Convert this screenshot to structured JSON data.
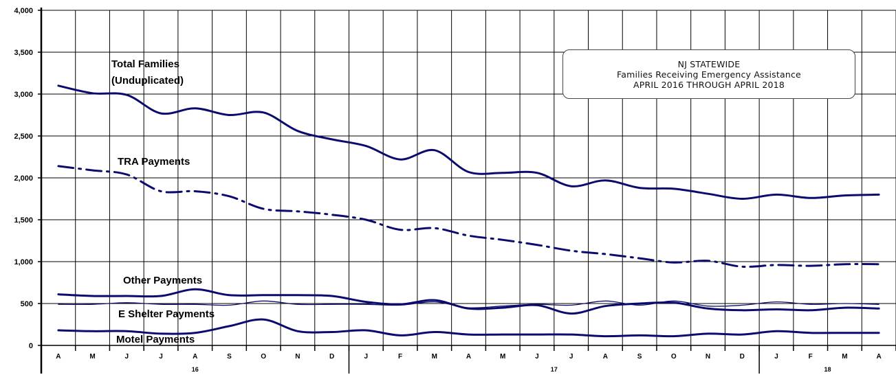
{
  "chart_data": {
    "type": "line",
    "title_lines": [
      "NJ STATEWIDE",
      "Families Receiving Emergency Assistance",
      "APRIL 2016 THROUGH APRIL 2018"
    ],
    "ylim": [
      0,
      4000
    ],
    "y_ticks": [
      "0",
      "500",
      "1,000",
      "1,500",
      "2,000",
      "2,500",
      "3,000",
      "3,500",
      "4,000"
    ],
    "y_tick_values": [
      0,
      500,
      1000,
      1500,
      2000,
      2500,
      3000,
      3500,
      4000
    ],
    "categories": [
      "A",
      "M",
      "J",
      "J",
      "A",
      "S",
      "O",
      "N",
      "D",
      "J",
      "F",
      "M",
      "A",
      "M",
      "J",
      "J",
      "A",
      "S",
      "O",
      "N",
      "D",
      "J",
      "F",
      "M",
      "A"
    ],
    "year_groups": [
      {
        "label": "16",
        "start": 0,
        "end": 8
      },
      {
        "label": "17",
        "start": 9,
        "end": 20
      },
      {
        "label": "18",
        "start": 21,
        "end": 24
      }
    ],
    "grid": true,
    "series": [
      {
        "name": "Total Families (Unduplicated)",
        "name_lines": [
          "Total Families",
          "(Unduplicated)"
        ],
        "style": "solid",
        "width": 3,
        "values": [
          3100,
          3010,
          2990,
          2770,
          2830,
          2750,
          2780,
          2560,
          2460,
          2380,
          2220,
          2330,
          2070,
          2060,
          2060,
          1900,
          1970,
          1880,
          1870,
          1810,
          1750,
          1800,
          1760,
          1790,
          1800
        ]
      },
      {
        "name": "TRA Payments",
        "name_lines": [
          "TRA Payments"
        ],
        "style": "dashdot",
        "width": 3,
        "values": [
          2140,
          2090,
          2040,
          1840,
          1840,
          1780,
          1630,
          1600,
          1560,
          1500,
          1380,
          1400,
          1310,
          1260,
          1200,
          1130,
          1090,
          1040,
          990,
          1010,
          940,
          960,
          950,
          970,
          970
        ]
      },
      {
        "name": "Other Payments",
        "name_lines": [
          "Other Payments"
        ],
        "style": "solid",
        "width": 3,
        "values": [
          610,
          590,
          590,
          590,
          670,
          600,
          600,
          600,
          590,
          520,
          490,
          540,
          440,
          450,
          480,
          380,
          470,
          500,
          510,
          440,
          420,
          430,
          420,
          450,
          440
        ]
      },
      {
        "name": "E Shelter Payments",
        "name_lines": [
          "E Shelter Payments"
        ],
        "style": "solid",
        "width": 1.3,
        "values": [
          490,
          490,
          510,
          490,
          490,
          480,
          530,
          490,
          490,
          490,
          480,
          520,
          450,
          470,
          490,
          480,
          530,
          480,
          530,
          470,
          480,
          520,
          490,
          500,
          490
        ]
      },
      {
        "name": "Motel Payments",
        "name_lines": [
          "Motel Payments"
        ],
        "style": "solid",
        "width": 3,
        "values": [
          180,
          170,
          170,
          140,
          150,
          230,
          310,
          170,
          160,
          180,
          120,
          160,
          130,
          130,
          130,
          130,
          110,
          120,
          110,
          140,
          130,
          170,
          150,
          150,
          150
        ]
      }
    ],
    "line_color": "#0b0b6e"
  }
}
